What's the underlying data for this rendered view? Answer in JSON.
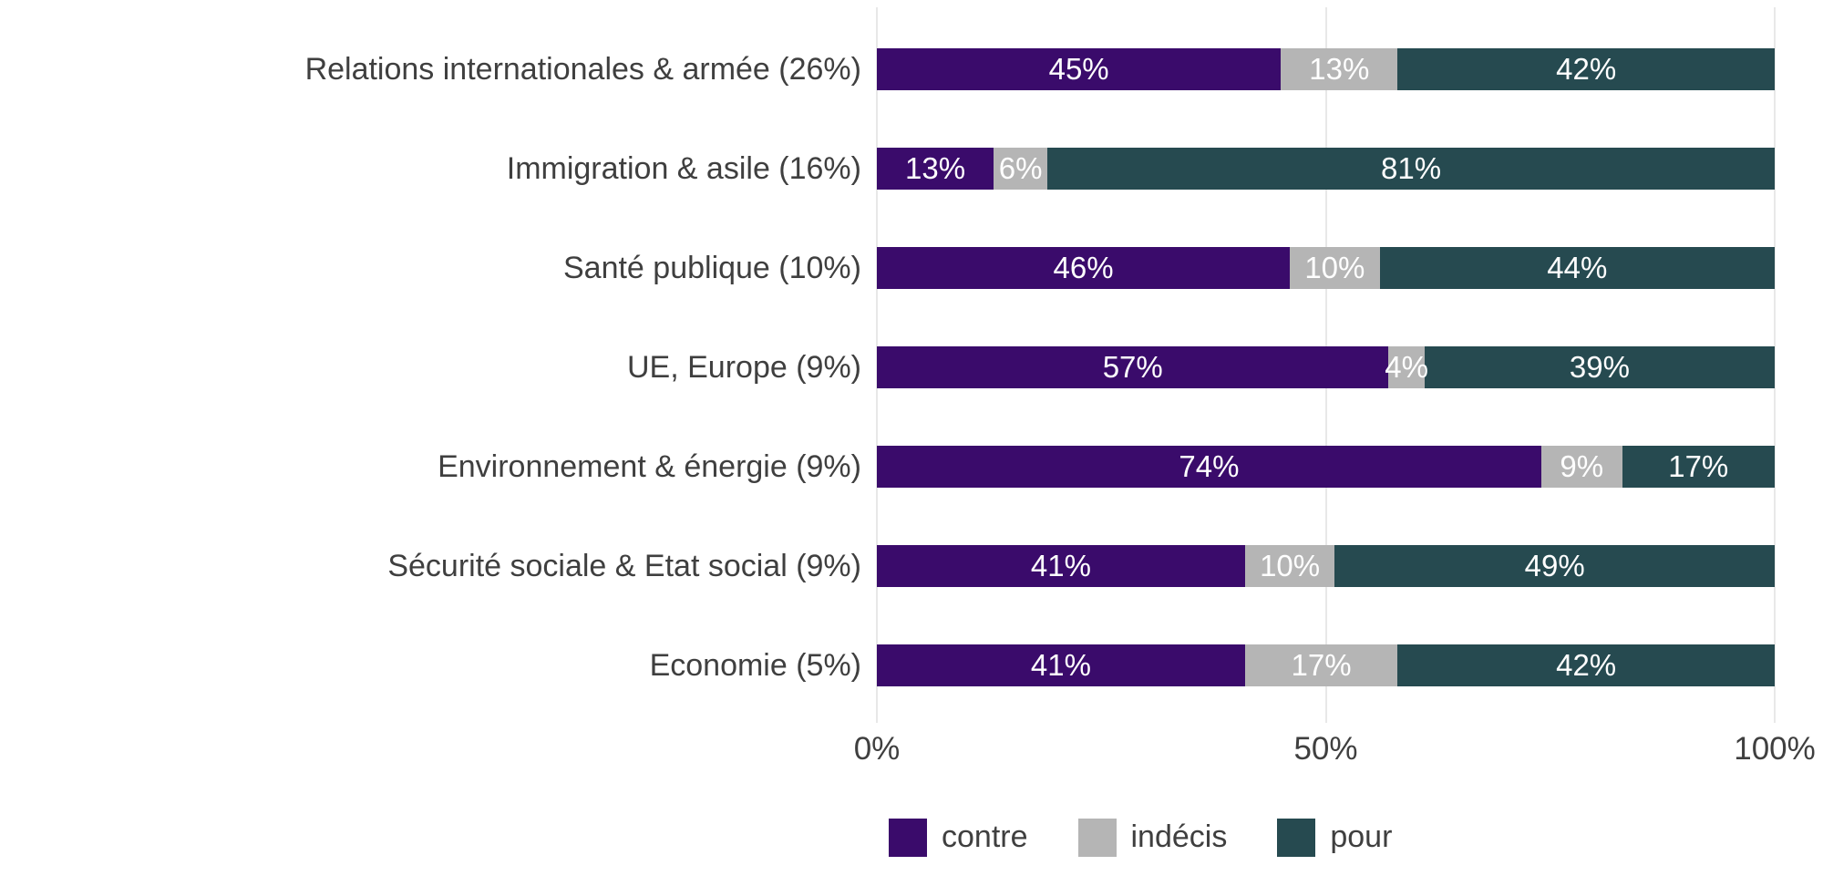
{
  "chart_data": {
    "type": "bar",
    "orientation": "horizontal",
    "stacked": true,
    "title": "",
    "xlabel": "",
    "ylabel": "",
    "xlim": [
      0,
      100
    ],
    "grid": "vertical",
    "categories": [
      "Relations internationales & armée (26%)",
      "Immigration & asile (16%)",
      "Santé publique (10%)",
      "UE, Europe (9%)",
      "Environnement & énergie (9%)",
      "Sécurité sociale & Etat social (9%)",
      "Economie (5%)"
    ],
    "series": [
      {
        "name": "contre",
        "color": "#3a0b6b",
        "values": [
          45,
          13,
          46,
          57,
          74,
          41,
          41
        ],
        "labels": [
          "45%",
          "13%",
          "46%",
          "57%",
          "74%",
          "41%",
          "41%"
        ]
      },
      {
        "name": "indécis",
        "color": "#b5b5b5",
        "values": [
          13,
          6,
          10,
          4,
          9,
          10,
          17
        ],
        "labels": [
          "13%",
          "6%",
          "10%",
          "4%",
          "9%",
          "10%",
          "17%"
        ]
      },
      {
        "name": "pour",
        "color": "#264a50",
        "values": [
          42,
          81,
          44,
          39,
          17,
          49,
          42
        ],
        "labels": [
          "42%",
          "81%",
          "44%",
          "39%",
          "17%",
          "49%",
          "42%"
        ]
      }
    ],
    "x_ticks": [
      {
        "value": 0,
        "label": "0%"
      },
      {
        "value": 50,
        "label": "50%"
      },
      {
        "value": 100,
        "label": "100%"
      }
    ],
    "legend": {
      "position": "bottom",
      "items": [
        "contre",
        "indécis",
        "pour"
      ]
    }
  },
  "colors": {
    "background": "#ffffff",
    "gridline": "#e8e8e8",
    "axis_text": "#3f3f3f",
    "bar_value_text": "#ffffff"
  }
}
